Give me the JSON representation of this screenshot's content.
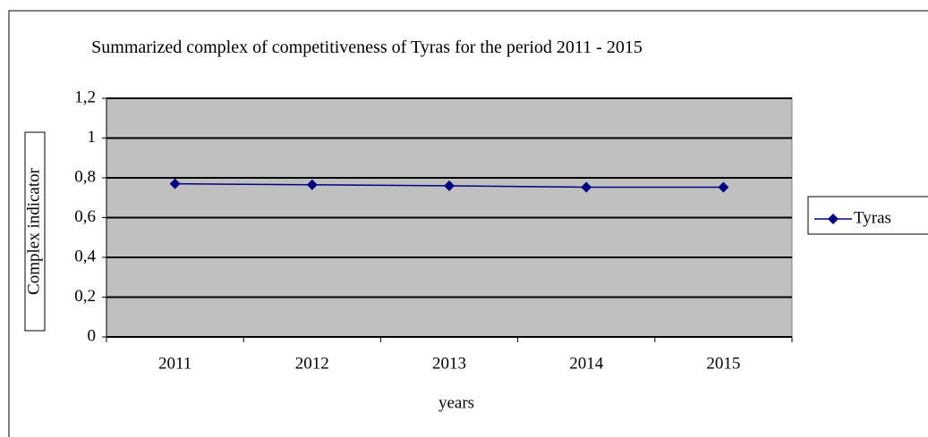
{
  "chart_data": {
    "type": "line",
    "title": "Summarized complex of competitiveness of  Tyras for the period 2011 - 2015",
    "x_label": "years",
    "y_label": "Complex indicator",
    "categories": [
      "2011",
      "2012",
      "2013",
      "2014",
      "2015"
    ],
    "series": [
      {
        "name": "Tyras",
        "color": "#000080",
        "values": [
          0.77,
          0.765,
          0.76,
          0.753,
          0.753
        ]
      }
    ],
    "ylim": [
      0,
      1.2
    ],
    "yticks": [
      0,
      {
        "value": 0.2,
        "label": "0,2"
      },
      {
        "value": 0.4,
        "label": "0,4"
      },
      {
        "value": 0.6,
        "label": "0,6"
      },
      {
        "value": 0.8,
        "label": "0,8"
      },
      1,
      {
        "value": 1.2,
        "label": "1,2"
      }
    ],
    "grid": true,
    "legend": "right",
    "plot_background": "#c0c0c0"
  }
}
